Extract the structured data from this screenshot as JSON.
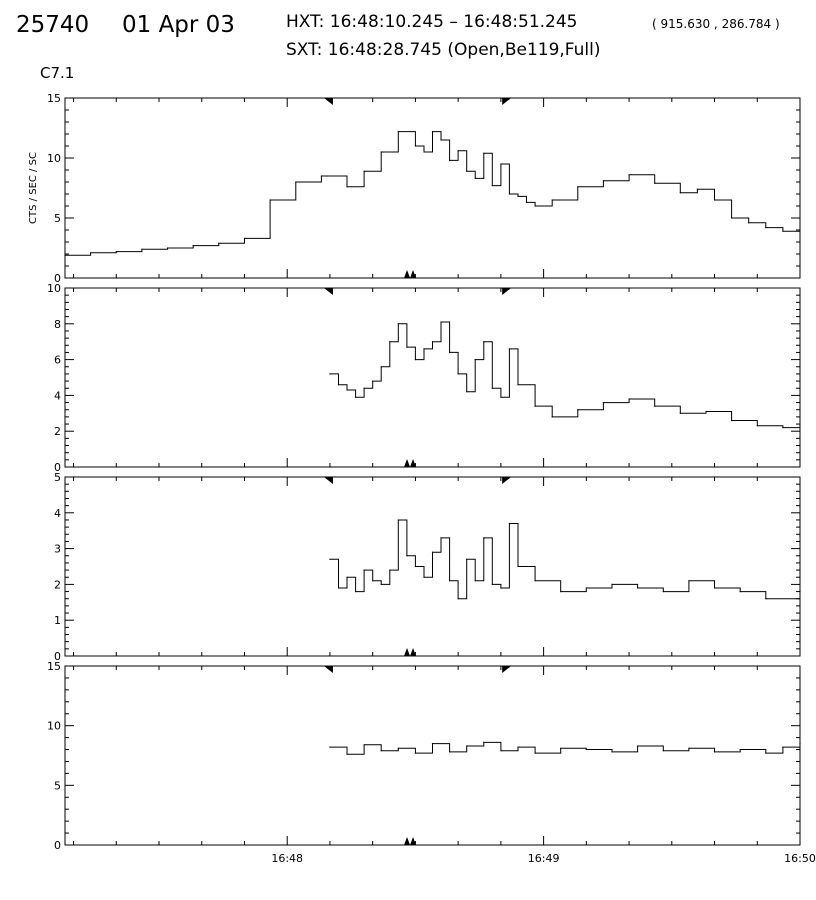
{
  "header": {
    "event_id": "25740",
    "date": "01 Apr 03",
    "hxt": "HXT: 16:48:10.245 – 16:48:51.245",
    "coords": "( 915.630 , 286.784 )",
    "sxt": "SXT: 16:48:28.745 (Open,Be119,Full)",
    "flare_class": "C7.1"
  },
  "chart_data": [
    {
      "type": "line",
      "ylabel": "CTS / SEC / SC",
      "ylim": [
        0,
        15
      ],
      "yticks": [
        0,
        5,
        10,
        15
      ],
      "x": [
        "16:47:08",
        "16:47:14",
        "16:47:20",
        "16:47:26",
        "16:47:32",
        "16:47:38",
        "16:47:44",
        "16:47:50",
        "16:47:56",
        "16:48:02",
        "16:48:08",
        "16:48:14",
        "16:48:18",
        "16:48:22",
        "16:48:26",
        "16:48:30",
        "16:48:32",
        "16:48:34",
        "16:48:36",
        "16:48:38",
        "16:48:40",
        "16:48:42",
        "16:48:44",
        "16:48:46",
        "16:48:48",
        "16:48:50",
        "16:48:52",
        "16:48:54",
        "16:48:56",
        "16:48:58",
        "16:49:02",
        "16:49:08",
        "16:49:14",
        "16:49:20",
        "16:49:26",
        "16:49:32",
        "16:49:36",
        "16:49:40",
        "16:49:44",
        "16:49:48",
        "16:49:52",
        "16:49:56",
        "16:50:00"
      ],
      "values": [
        1.9,
        2.1,
        2.2,
        2.4,
        2.5,
        2.7,
        2.9,
        3.3,
        6.5,
        8.0,
        8.5,
        7.6,
        8.9,
        10.5,
        12.2,
        11.0,
        10.5,
        12.2,
        11.5,
        9.8,
        10.6,
        8.9,
        8.3,
        10.4,
        7.7,
        9.5,
        7.0,
        6.8,
        6.3,
        6.0,
        6.5,
        7.6,
        8.1,
        8.6,
        7.9,
        7.1,
        7.4,
        6.5,
        5.0,
        4.6,
        4.2,
        3.9,
        3.5
      ]
    },
    {
      "type": "line",
      "ylim": [
        0,
        10
      ],
      "yticks": [
        0,
        2,
        4,
        6,
        8,
        10
      ],
      "x": [
        "16:48:10",
        "16:48:12",
        "16:48:14",
        "16:48:16",
        "16:48:18",
        "16:48:20",
        "16:48:22",
        "16:48:24",
        "16:48:26",
        "16:48:28",
        "16:48:30",
        "16:48:32",
        "16:48:34",
        "16:48:36",
        "16:48:38",
        "16:48:40",
        "16:48:42",
        "16:48:44",
        "16:48:46",
        "16:48:48",
        "16:48:50",
        "16:48:52",
        "16:48:54",
        "16:48:58",
        "16:49:02",
        "16:49:08",
        "16:49:14",
        "16:49:20",
        "16:49:26",
        "16:49:32",
        "16:49:38",
        "16:49:44",
        "16:49:50",
        "16:49:56",
        "16:50:00"
      ],
      "values": [
        5.2,
        4.6,
        4.3,
        3.9,
        4.4,
        4.8,
        5.6,
        7.0,
        8.0,
        6.7,
        6.0,
        6.6,
        7.0,
        8.1,
        6.4,
        5.2,
        4.2,
        6.0,
        7.0,
        4.4,
        3.9,
        6.6,
        4.6,
        3.4,
        2.8,
        3.2,
        3.6,
        3.8,
        3.4,
        3.0,
        3.1,
        2.6,
        2.3,
        2.2,
        2.3
      ]
    },
    {
      "type": "line",
      "ylim": [
        0,
        5
      ],
      "yticks": [
        0,
        1,
        2,
        3,
        4,
        5
      ],
      "x": [
        "16:48:10",
        "16:48:12",
        "16:48:14",
        "16:48:16",
        "16:48:18",
        "16:48:20",
        "16:48:22",
        "16:48:24",
        "16:48:26",
        "16:48:28",
        "16:48:30",
        "16:48:32",
        "16:48:34",
        "16:48:36",
        "16:48:38",
        "16:48:40",
        "16:48:42",
        "16:48:44",
        "16:48:46",
        "16:48:48",
        "16:48:50",
        "16:48:52",
        "16:48:54",
        "16:48:58",
        "16:49:04",
        "16:49:10",
        "16:49:16",
        "16:49:22",
        "16:49:28",
        "16:49:34",
        "16:49:40",
        "16:49:46",
        "16:49:52",
        "16:50:00"
      ],
      "values": [
        2.7,
        1.9,
        2.2,
        1.8,
        2.4,
        2.1,
        2.0,
        2.4,
        3.8,
        2.8,
        2.5,
        2.2,
        2.9,
        3.3,
        2.1,
        1.6,
        2.7,
        2.1,
        3.3,
        2.0,
        1.9,
        3.7,
        2.5,
        2.1,
        1.8,
        1.9,
        2.0,
        1.9,
        1.8,
        2.1,
        1.9,
        1.8,
        1.6,
        1.8
      ]
    },
    {
      "type": "line",
      "ylim": [
        0,
        15
      ],
      "yticks": [
        0,
        5,
        10,
        15
      ],
      "x": [
        "16:48:10",
        "16:48:14",
        "16:48:18",
        "16:48:22",
        "16:48:26",
        "16:48:30",
        "16:48:34",
        "16:48:38",
        "16:48:42",
        "16:48:46",
        "16:48:50",
        "16:48:54",
        "16:48:58",
        "16:49:04",
        "16:49:10",
        "16:49:16",
        "16:49:22",
        "16:49:28",
        "16:49:34",
        "16:49:40",
        "16:49:46",
        "16:49:52",
        "16:49:56",
        "16:50:00"
      ],
      "values": [
        8.2,
        7.6,
        8.4,
        7.9,
        8.1,
        7.7,
        8.5,
        7.8,
        8.3,
        8.6,
        7.9,
        8.2,
        7.7,
        8.1,
        8.0,
        7.8,
        8.3,
        7.9,
        8.1,
        7.8,
        8.0,
        7.7,
        8.2,
        8.5
      ]
    }
  ],
  "xaxis": {
    "range": [
      "16:47:08",
      "16:50:00"
    ],
    "ticks": [
      {
        "t": "16:48:00",
        "label": "16:48"
      },
      {
        "t": "16:49:00",
        "label": "16:49"
      },
      {
        "t": "16:50:00",
        "label": "16:50"
      }
    ]
  },
  "markers": {
    "interval": [
      "16:48:10",
      "16:48:51"
    ],
    "sxt_time": "16:48:28.745"
  }
}
